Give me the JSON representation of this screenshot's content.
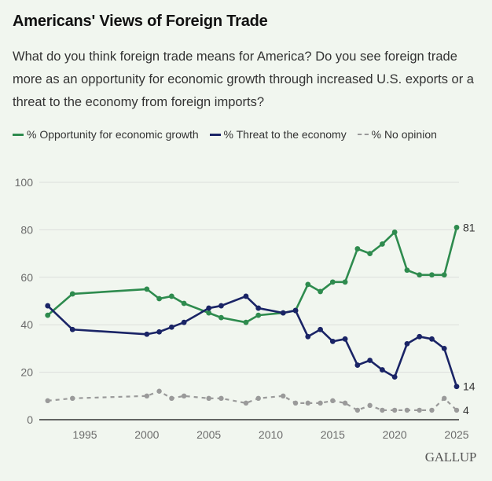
{
  "chart_data": {
    "type": "line",
    "title": "Americans' Views of Foreign Trade",
    "subtitle": "What do you think foreign trade means for America? Do you see foreign trade more as an opportunity for economic growth through increased U.S. exports or a threat to the economy from foreign imports?",
    "xlabel": "",
    "ylabel": "",
    "ylim": [
      0,
      100
    ],
    "yticks": [
      0,
      20,
      40,
      60,
      80,
      100
    ],
    "xticks": [
      1995,
      2000,
      2005,
      2010,
      2015,
      2020,
      2025
    ],
    "xlim": [
      1991,
      2026
    ],
    "grid": true,
    "legend_position": "top-left",
    "x": [
      1992,
      1994,
      2000,
      2001,
      2002,
      2003,
      2005,
      2006,
      2008,
      2009,
      2011,
      2012,
      2013,
      2014,
      2015,
      2016,
      2017,
      2018,
      2019,
      2020,
      2021,
      2022,
      2023,
      2024,
      2025
    ],
    "series": [
      {
        "name": "% Opportunity for economic growth",
        "color": "#2e8b4e",
        "style": "solid",
        "values": [
          44,
          53,
          55,
          51,
          52,
          49,
          45,
          43,
          41,
          44,
          45,
          46,
          57,
          54,
          58,
          58,
          72,
          70,
          74,
          79,
          63,
          61,
          61,
          61,
          81
        ],
        "end_label": "81"
      },
      {
        "name": "% Threat to the economy",
        "color": "#1a2466",
        "style": "solid",
        "values": [
          48,
          38,
          36,
          37,
          39,
          41,
          47,
          48,
          52,
          47,
          45,
          46,
          35,
          38,
          33,
          34,
          23,
          25,
          21,
          18,
          32,
          35,
          34,
          30,
          14
        ],
        "end_label": "14"
      },
      {
        "name": "% No opinion",
        "color": "#9a9a9a",
        "style": "dashed",
        "values": [
          8,
          9,
          10,
          12,
          9,
          10,
          9,
          9,
          7,
          9,
          10,
          7,
          7,
          7,
          8,
          7,
          4,
          6,
          4,
          4,
          4,
          4,
          4,
          9,
          4
        ],
        "end_label": "4"
      }
    ]
  },
  "brand": "GALLUP"
}
